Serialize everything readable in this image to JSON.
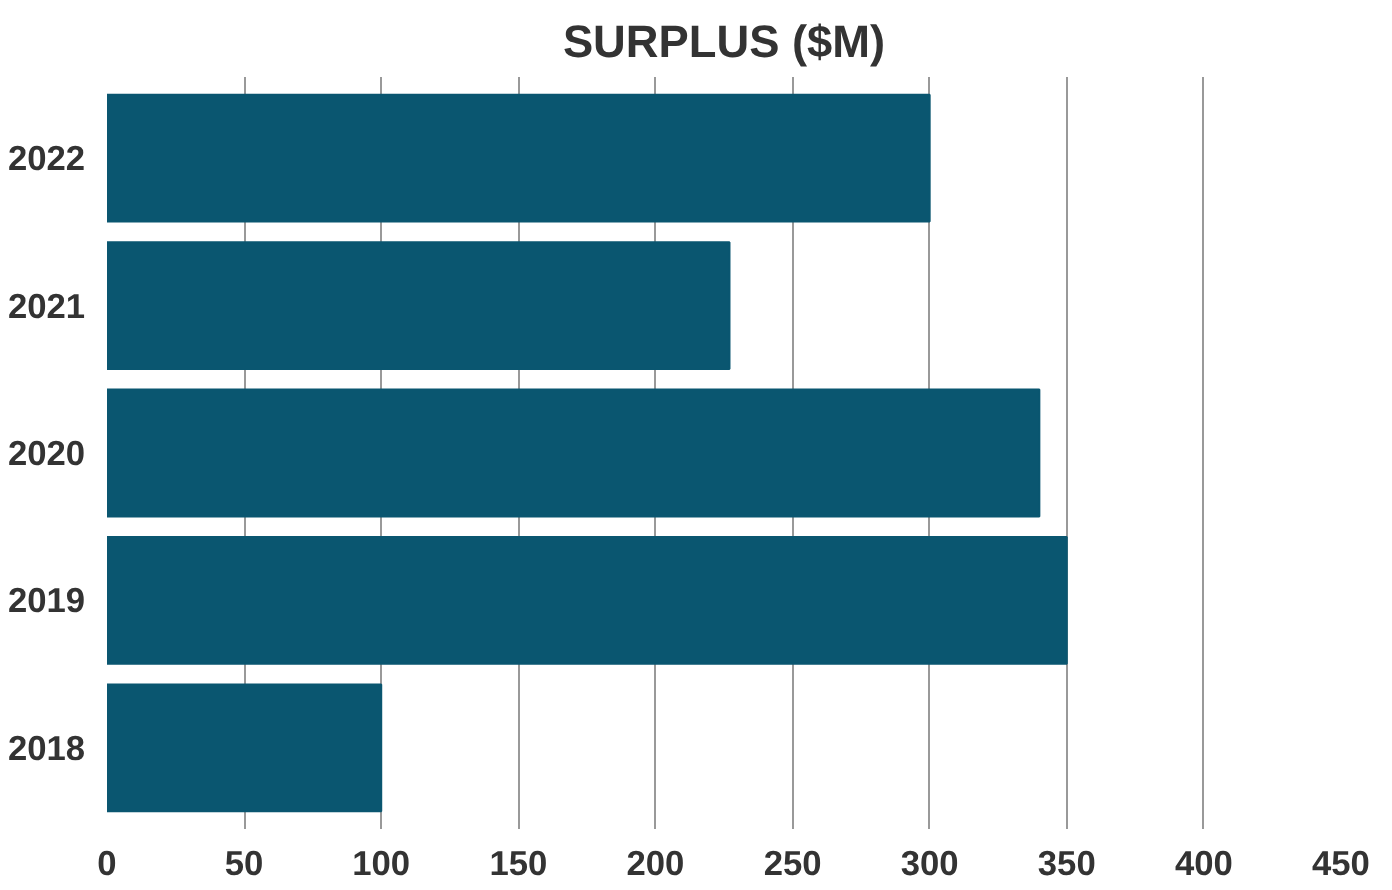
{
  "chart_data": {
    "type": "bar",
    "orientation": "horizontal",
    "title": "SURPLUS ($M)",
    "categories": [
      "2022",
      "2021",
      "2020",
      "2019",
      "2018"
    ],
    "values": [
      300,
      227,
      340,
      350,
      100
    ],
    "color": "#0a5670",
    "xlim": [
      0,
      450
    ],
    "xticks": [
      0,
      50,
      100,
      150,
      200,
      250,
      300,
      350,
      400,
      450
    ],
    "grid": "x"
  }
}
